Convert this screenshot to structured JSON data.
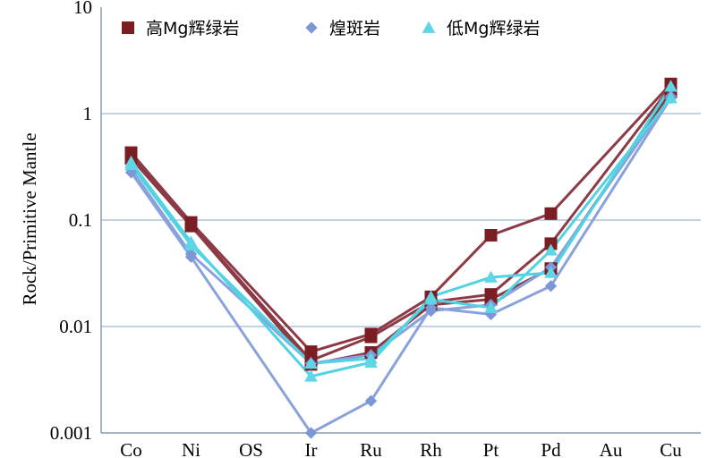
{
  "chart_data": {
    "type": "line",
    "ylabel": "Rock/Primitive Mantle",
    "xlabel": "",
    "y_scale": "log",
    "ylim": [
      0.001,
      10
    ],
    "y_ticks": [
      "10",
      "1",
      "0.1",
      "0.01",
      "0.001"
    ],
    "grid": "horizontal",
    "legend_position": "top",
    "categories": [
      "Co",
      "Ni",
      "OS",
      "Ir",
      "Ru",
      "Rh",
      "Pt",
      "Pd",
      "Au",
      "Cu"
    ],
    "series": [
      {
        "name": "高Mg辉绿岩",
        "marker": "square",
        "marker_color": "#7b1e24",
        "line_color": "#8b3a46",
        "lines": [
          [
            0.43,
            0.095,
            null,
            0.0058,
            0.0085,
            0.019,
            0.072,
            0.115,
            null,
            1.9
          ],
          [
            0.4,
            0.09,
            null,
            0.0048,
            0.008,
            0.017,
            0.02,
            0.06,
            null,
            1.8
          ],
          [
            0.38,
            0.088,
            null,
            0.0044,
            0.0057,
            0.016,
            0.018,
            0.035,
            null,
            1.6
          ]
        ]
      },
      {
        "name": "煌斑岩",
        "marker": "diamond",
        "marker_color": "#7b97d6",
        "line_color": "#8aa2dc",
        "lines": [
          [
            0.28,
            0.045,
            null,
            0.001,
            0.002,
            0.015,
            0.013,
            0.024,
            null,
            1.4
          ],
          [
            0.3,
            0.048,
            null,
            0.0045,
            0.0054,
            0.014,
            0.016,
            0.036,
            null,
            1.45
          ]
        ]
      },
      {
        "name": "低Mg辉绿岩",
        "marker": "triangle",
        "marker_color": "#5fd6e6",
        "line_color": "#52d3e3",
        "lines": [
          [
            0.35,
            0.062,
            null,
            0.0034,
            0.0046,
            0.019,
            0.029,
            0.032,
            null,
            1.8
          ],
          [
            0.33,
            0.058,
            null,
            0.0045,
            0.005,
            0.018,
            0.015,
            0.052,
            null,
            1.4
          ]
        ]
      }
    ]
  }
}
